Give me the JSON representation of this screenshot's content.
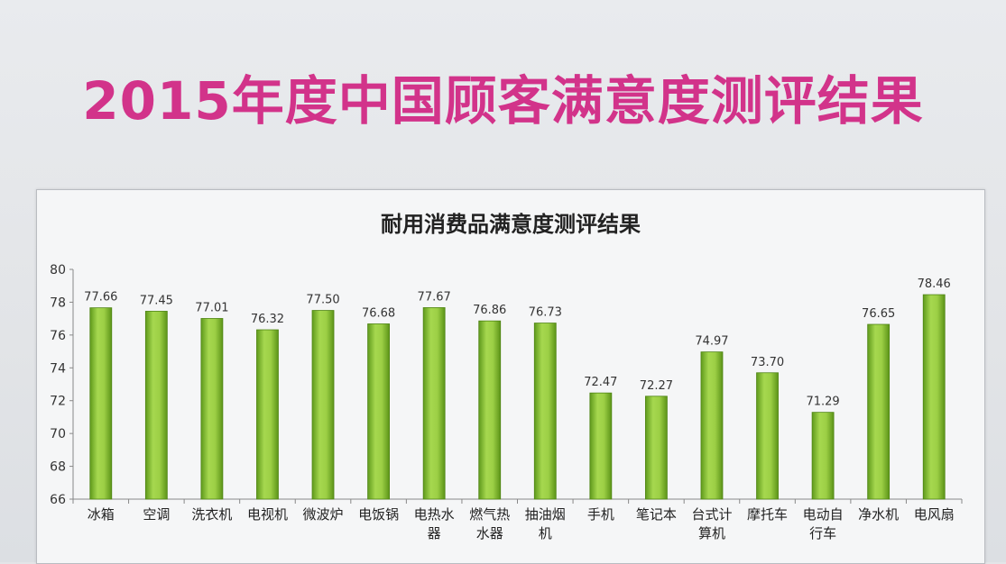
{
  "page": {
    "title": "2015年度中国顾客满意度测评结果"
  },
  "chart_data": {
    "type": "bar",
    "title": "耐用消费品满意度测评结果",
    "xlabel": "",
    "ylabel": "",
    "ylim": [
      66,
      80
    ],
    "yticks": [
      66,
      68,
      70,
      72,
      74,
      76,
      78,
      80
    ],
    "grid": false,
    "legend": "none",
    "bar_color": "#8cc63f",
    "categories": [
      [
        "冰箱"
      ],
      [
        "空调"
      ],
      [
        "洗衣机"
      ],
      [
        "电视机"
      ],
      [
        "微波炉"
      ],
      [
        "电饭锅"
      ],
      [
        "电热水",
        "器"
      ],
      [
        "燃气热",
        "水器"
      ],
      [
        "抽油烟",
        "机"
      ],
      [
        "手机"
      ],
      [
        "笔记本"
      ],
      [
        "台式计",
        "算机"
      ],
      [
        "摩托车"
      ],
      [
        "电动自",
        "行车"
      ],
      [
        "净水机"
      ],
      [
        "电风扇"
      ]
    ],
    "values": [
      77.66,
      77.45,
      77.01,
      76.32,
      77.5,
      76.68,
      77.67,
      76.86,
      76.73,
      72.47,
      72.27,
      74.97,
      73.7,
      71.29,
      76.65,
      78.46
    ],
    "value_labels": [
      "77.66",
      "77.45",
      "77.01",
      "76.32",
      "77.50",
      "76.68",
      "77.67",
      "76.86",
      "76.73",
      "72.47",
      "72.27",
      "74.97",
      "73.70",
      "71.29",
      "76.65",
      "78.46"
    ]
  }
}
